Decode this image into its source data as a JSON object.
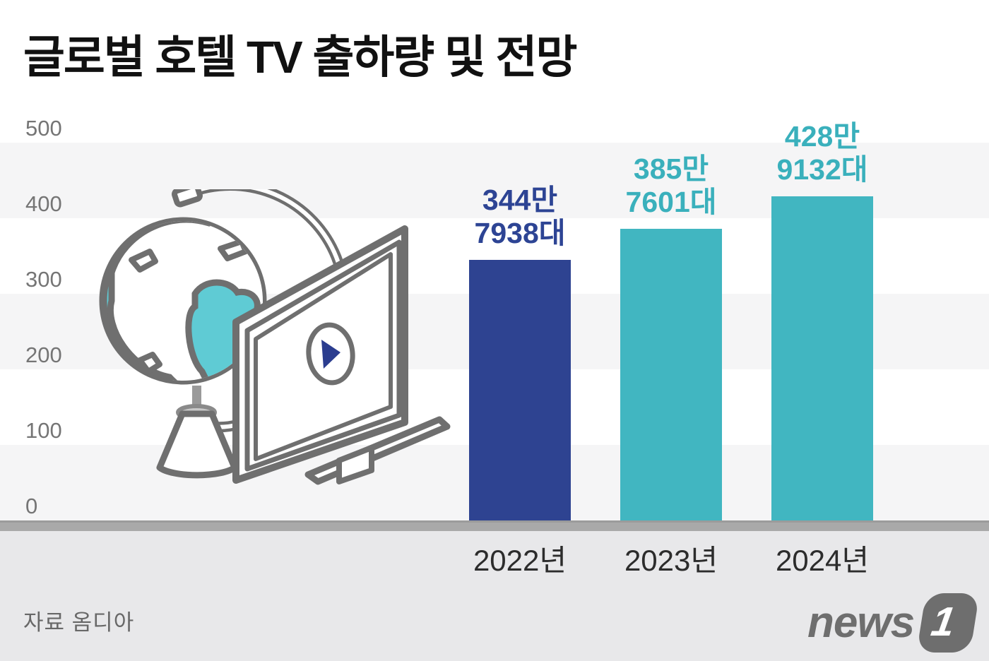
{
  "title": "글로벌 호텔 TV 출하량 및 전망",
  "source": "자료 옴디아",
  "logo": {
    "text": "news",
    "badge": "1"
  },
  "chart_data": {
    "type": "bar",
    "title": "글로벌 호텔 TV 출하량 및 전망",
    "categories": [
      "2022년",
      "2023년",
      "2024년"
    ],
    "values": [
      344.7938,
      385.7601,
      428.9132
    ],
    "values_units": [
      3447938,
      3857601,
      4289132
    ],
    "unit": "만 대",
    "value_labels": [
      {
        "line1": "344만",
        "line2": "7938대"
      },
      {
        "line1": "385만",
        "line2": "7601대"
      },
      {
        "line1": "428만",
        "line2": "9132대"
      }
    ],
    "bar_colors": [
      "#2e4391",
      "#41b6c1",
      "#41b6c1"
    ],
    "label_colors": [
      "#2d4494",
      "#3ab0bc",
      "#3ab0bc"
    ],
    "yticks": [
      "500",
      "400",
      "300",
      "200",
      "100",
      "0"
    ],
    "ylim": [
      0,
      500
    ],
    "grid": "striped-horizontal-bands",
    "legend": "none"
  },
  "colors": {
    "navy": "#2e4391",
    "teal": "#41b6c1",
    "illustration_teal": "#5fcbd4",
    "outline_gray": "#6f6f6f",
    "band_gray": "#f5f5f6",
    "baseline_gray": "#a9a9a9",
    "footer_gray": "#e8e8ea",
    "axis_text": "#757575",
    "logo_gray": "#6e6e6e"
  }
}
